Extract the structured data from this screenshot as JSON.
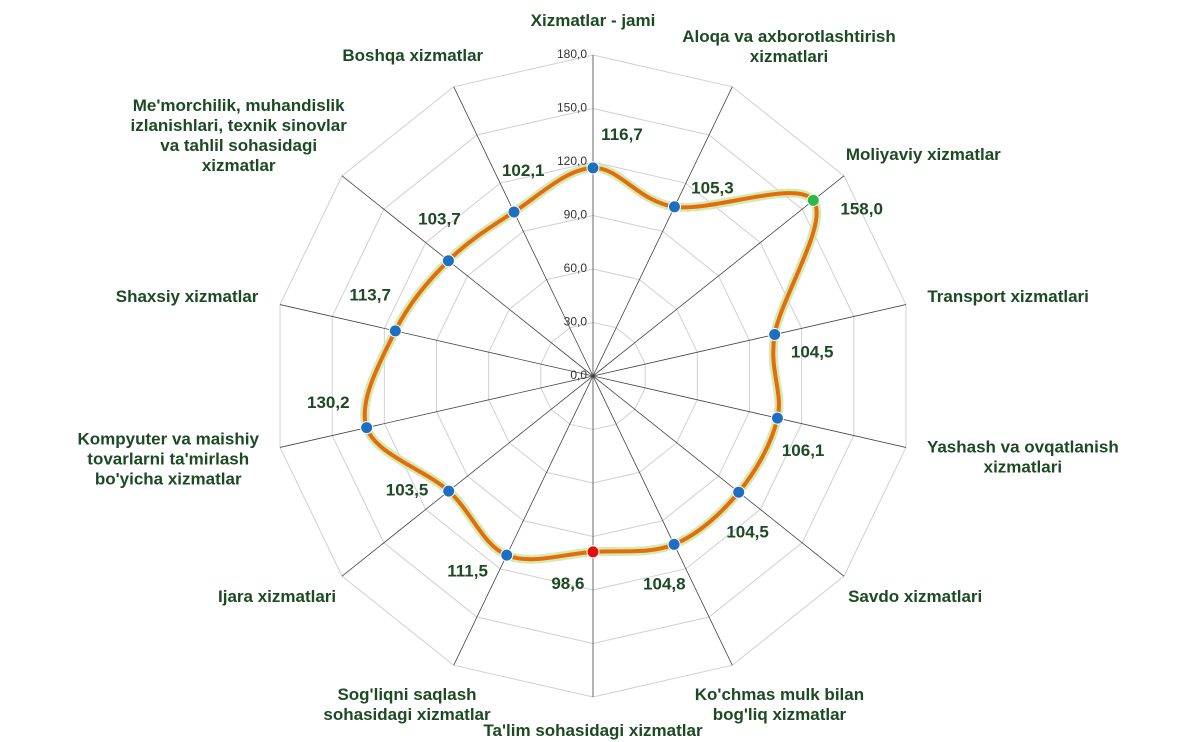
{
  "chart_data": {
    "type": "radar",
    "categories": [
      "Xizmatlar - jami",
      "Aloqa va axborotlashtirish\nxizmatlari",
      "Moliyaviy xizmatlar",
      "Transport xizmatlari",
      "Yashash va ovqatlanish\nxizmatlari",
      "Savdo xizmatlari",
      "Ko'chmas mulk bilan\nbog'liq xizmatlar",
      "Ta'lim sohasidagi xizmatlar",
      "Sog'liqni saqlash\nsohasidagi xizmatlar",
      "Ijara xizmatlari",
      "Kompyuter va maishiy\ntovarlarni ta'mirlash\nbo'yicha xizmatlar",
      "Shaxsiy xizmatlar",
      "Me'morchilik, muhandislik\nizlanishlari, texnik  sinovlar\nva tahlil sohasidagi\nxizmatlar",
      "Boshqa xizmatlar"
    ],
    "values": [
      116.7,
      105.3,
      158.0,
      104.5,
      106.1,
      104.5,
      104.8,
      98.6,
      111.5,
      103.5,
      130.2,
      113.7,
      103.7,
      102.1
    ],
    "value_labels": [
      "116,7",
      "105,3",
      "158,0",
      "104,5",
      "106,1",
      "104,5",
      "104,8",
      "98,6",
      "111,5",
      "103,5",
      "130,2",
      "113,7",
      "103,7",
      "102,1"
    ],
    "color": "#e46c0a",
    "point_colors": [
      "#1f6fc0",
      "#1f6fc0",
      "#2db84a",
      "#1f6fc0",
      "#1f6fc0",
      "#1f6fc0",
      "#1f6fc0",
      "#e01010",
      "#1f6fc0",
      "#1f6fc0",
      "#1f6fc0",
      "#1f6fc0",
      "#1f6fc0",
      "#1f6fc0"
    ],
    "ylim": [
      0,
      180
    ],
    "yticks": [
      {
        "value": 0,
        "label": "0,0"
      },
      {
        "value": 30,
        "label": "30,0"
      },
      {
        "value": 60,
        "label": "60,0"
      },
      {
        "value": 90,
        "label": "90,0"
      },
      {
        "value": 120,
        "label": "120,0"
      },
      {
        "value": 150,
        "label": "150,0"
      },
      {
        "value": 180,
        "label": "180,0"
      }
    ],
    "grid": true
  }
}
